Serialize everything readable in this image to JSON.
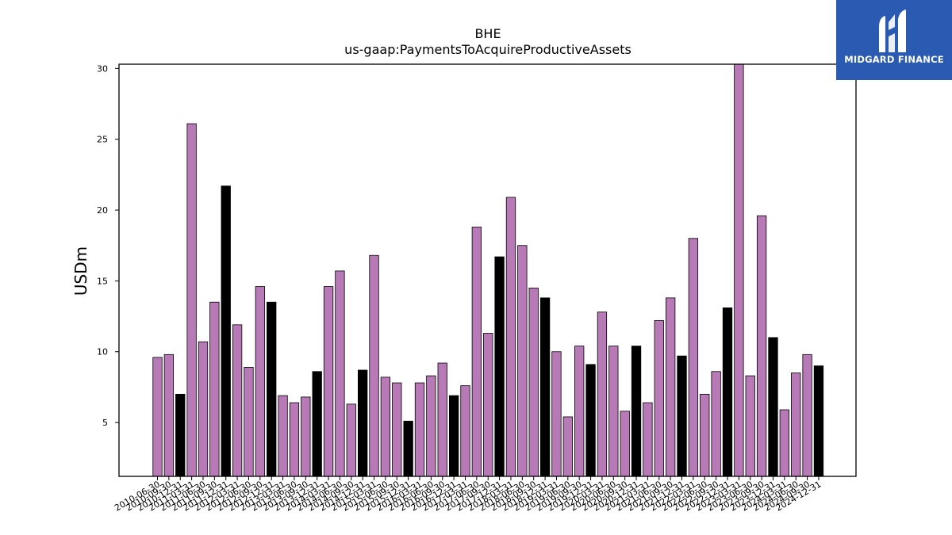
{
  "brand": {
    "name": "MIDGARD FINANCE",
    "bg_color": "#2a5ab1",
    "logo_icon": "midgard-m-logo-icon"
  },
  "chart_data": {
    "type": "bar",
    "title": "BHE",
    "subtitle": "us-gaap:PaymentsToAcquireProductiveAssets",
    "xlabel": "",
    "ylabel": "USDm",
    "ylim": [
      1.2,
      30.3
    ],
    "yticks": [
      5,
      10,
      15,
      20,
      25,
      30
    ],
    "colors": {
      "quarter": "#b77ab7",
      "year_end": "#000000"
    },
    "grid": false,
    "categories": [
      "2010-06-30",
      "2010-09-30",
      "2010-12-31",
      "2011-03-31",
      "2011-06-30",
      "2011-09-30",
      "2011-12-31",
      "2012-03-31",
      "2012-06-30",
      "2012-09-30",
      "2012-12-31",
      "2013-03-31",
      "2013-06-30",
      "2013-09-30",
      "2013-12-31",
      "2014-03-31",
      "2014-06-30",
      "2014-09-30",
      "2014-12-31",
      "2015-03-31",
      "2015-06-30",
      "2015-09-30",
      "2015-12-31",
      "2016-03-31",
      "2016-06-30",
      "2016-09-30",
      "2016-12-31",
      "2017-03-31",
      "2017-06-30",
      "2017-09-30",
      "2017-12-31",
      "2018-03-31",
      "2018-06-30",
      "2018-09-30",
      "2018-12-31",
      "2019-03-31",
      "2019-06-30",
      "2019-09-30",
      "2019-12-31",
      "2020-03-31",
      "2020-06-30",
      "2020-09-30",
      "2020-12-31",
      "2021-03-31",
      "2021-06-30",
      "2021-09-30",
      "2021-12-31",
      "2022-03-31",
      "2022-06-30",
      "2022-09-30",
      "2022-12-31",
      "2023-03-31",
      "2023-06-30",
      "2023-09-30",
      "2023-12-31",
      "2024-03-31",
      "2024-06-30",
      "2024-09-30",
      "2024-12-31"
    ],
    "values": [
      9.6,
      9.8,
      7.0,
      26.1,
      10.7,
      13.5,
      21.7,
      11.9,
      8.9,
      14.6,
      13.5,
      6.9,
      6.4,
      6.8,
      8.6,
      14.6,
      15.7,
      6.3,
      8.7,
      16.8,
      8.2,
      7.8,
      5.1,
      7.8,
      8.3,
      9.2,
      6.9,
      7.6,
      18.8,
      11.3,
      16.7,
      20.9,
      17.5,
      14.5,
      13.8,
      10.0,
      5.4,
      10.4,
      9.1,
      12.8,
      10.4,
      5.8,
      10.4,
      6.4,
      12.2,
      13.8,
      9.7,
      18.0,
      7.0,
      8.6,
      13.1,
      30.3,
      8.3,
      19.6,
      11.0,
      5.9,
      8.5,
      9.8,
      9.0
    ],
    "year_end": [
      false,
      false,
      true,
      false,
      false,
      false,
      true,
      false,
      false,
      false,
      true,
      false,
      false,
      false,
      true,
      false,
      false,
      false,
      true,
      false,
      false,
      false,
      true,
      false,
      false,
      false,
      true,
      false,
      false,
      false,
      true,
      false,
      false,
      false,
      true,
      false,
      false,
      false,
      true,
      false,
      false,
      false,
      true,
      false,
      false,
      false,
      true,
      false,
      false,
      false,
      true,
      false,
      false,
      false,
      true,
      false,
      false,
      false,
      true
    ]
  }
}
